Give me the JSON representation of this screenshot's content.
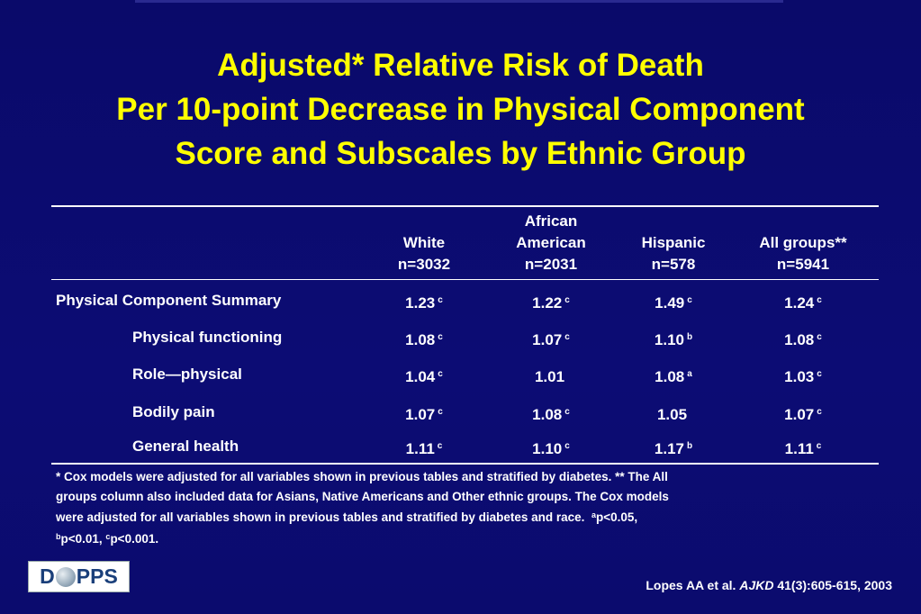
{
  "title": {
    "line1": "Adjusted* Relative Risk of Death",
    "line2": "Per 10-point Decrease in Physical Component",
    "line3": "Score and Subscales by Ethnic Group"
  },
  "table": {
    "columns": [
      {
        "line1": "",
        "line2": "White",
        "line3": "n=3032"
      },
      {
        "line1": "African",
        "line2": "American",
        "line3": "n=2031"
      },
      {
        "line1": "",
        "line2": "Hispanic",
        "line3": "n=578"
      },
      {
        "line1": "",
        "line2": "All groups**",
        "line3": "n=5941"
      }
    ],
    "rows": [
      {
        "label": "Physical Component Summary",
        "indent": false,
        "cells": [
          {
            "v": "1.23",
            "s": "c"
          },
          {
            "v": "1.22",
            "s": "c"
          },
          {
            "v": "1.49",
            "s": "c"
          },
          {
            "v": "1.24",
            "s": "c"
          }
        ]
      },
      {
        "label": "Physical functioning",
        "indent": true,
        "cells": [
          {
            "v": "1.08",
            "s": "c"
          },
          {
            "v": "1.07",
            "s": "c"
          },
          {
            "v": "1.10",
            "s": "b"
          },
          {
            "v": "1.08",
            "s": "c"
          }
        ]
      },
      {
        "label": "Role—physical",
        "indent": true,
        "cells": [
          {
            "v": "1.04",
            "s": "c"
          },
          {
            "v": "1.01",
            "s": ""
          },
          {
            "v": "1.08",
            "s": "a"
          },
          {
            "v": "1.03",
            "s": "c"
          }
        ]
      },
      {
        "label": "Bodily pain",
        "indent": true,
        "cells": [
          {
            "v": "1.07",
            "s": "c"
          },
          {
            "v": "1.08",
            "s": "c"
          },
          {
            "v": "1.05",
            "s": ""
          },
          {
            "v": "1.07",
            "s": "c"
          }
        ]
      },
      {
        "label": "General health",
        "indent": true,
        "cells": [
          {
            "v": "1.11",
            "s": "c"
          },
          {
            "v": "1.10",
            "s": "c"
          },
          {
            "v": "1.17",
            "s": "b"
          },
          {
            "v": "1.11",
            "s": "c"
          }
        ]
      }
    ]
  },
  "footnote": {
    "line1": "* Cox models were adjusted for all variables shown in previous tables and stratified by diabetes. ** The All",
    "line2": "groups column also included data for Asians, Native Americans and Other ethnic groups. The Cox models",
    "line3_text": "were adjusted for all variables shown in previous tables and stratified by diabetes and race.",
    "sup_a": "a",
    "p_a": "p<0.05,",
    "sup_b": "b",
    "p_b": "p<0.01,",
    "sup_c": "c",
    "p_c": "p<0.001."
  },
  "logo": {
    "left": "D",
    "right": "PPS"
  },
  "citation": {
    "authors": "Lopes AA et al.",
    "journal": "AJKD",
    "ref": "41(3):605-615, 2003"
  },
  "colors": {
    "background": "#0b0b6e",
    "title": "#ffff00",
    "text": "#ffffff",
    "logo_text": "#1a3f7a"
  }
}
